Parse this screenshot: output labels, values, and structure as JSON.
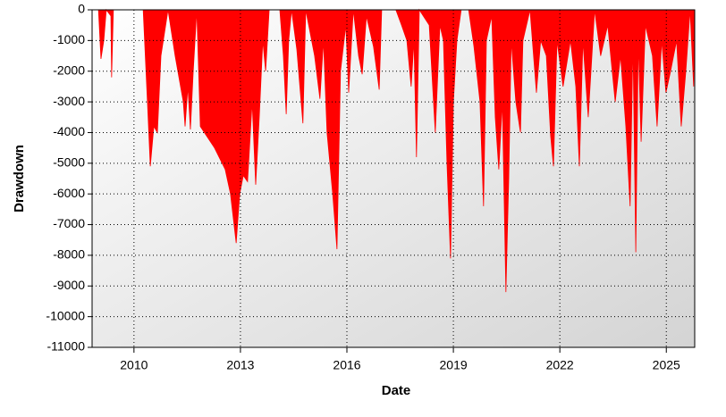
{
  "chart_data": {
    "type": "area",
    "x_label": "Date",
    "y_label": "Drawdown",
    "color": "#ff0000",
    "grid": true,
    "xlim": [
      2008.82,
      2025.8
    ],
    "xticks": [
      2010,
      2013,
      2016,
      2019,
      2022,
      2025
    ],
    "ylim": [
      -11000,
      0
    ],
    "yticks": [
      0,
      -1000,
      -2000,
      -3000,
      -4000,
      -5000,
      -6000,
      -7000,
      -8000,
      -9000,
      -10000,
      -11000
    ],
    "x": [
      2009.0,
      2009.07,
      2009.15,
      2009.22,
      2009.35,
      2009.37,
      2009.42,
      2010.26,
      2010.38,
      2010.46,
      2010.56,
      2010.66,
      2010.76,
      2010.96,
      2011.16,
      2011.39,
      2011.44,
      2011.52,
      2011.59,
      2011.67,
      2011.77,
      2011.87,
      2012.27,
      2012.57,
      2012.72,
      2012.88,
      2012.98,
      2013.08,
      2013.2,
      2013.33,
      2013.43,
      2013.53,
      2013.63,
      2013.71,
      2013.81,
      2014.11,
      2014.21,
      2014.29,
      2014.36,
      2014.44,
      2014.59,
      2014.76,
      2014.84,
      2015.09,
      2015.24,
      2015.34,
      2015.44,
      2015.6,
      2015.72,
      2015.82,
      2015.97,
      2016.05,
      2016.18,
      2016.33,
      2016.43,
      2016.55,
      2016.75,
      2016.91,
      2016.98,
      2017.38,
      2017.54,
      2017.69,
      2017.81,
      2017.89,
      2017.96,
      2018.04,
      2018.32,
      2018.49,
      2018.62,
      2018.72,
      2018.82,
      2018.92,
      2019.0,
      2019.1,
      2019.22,
      2019.43,
      2019.58,
      2019.75,
      2019.85,
      2019.93,
      2020.08,
      2020.18,
      2020.28,
      2020.38,
      2020.48,
      2020.56,
      2020.63,
      2020.76,
      2020.89,
      2020.96,
      2021.16,
      2021.34,
      2021.46,
      2021.62,
      2021.74,
      2021.82,
      2021.92,
      2022.09,
      2022.3,
      2022.45,
      2022.55,
      2022.65,
      2022.8,
      2022.98,
      2023.15,
      2023.35,
      2023.56,
      2023.71,
      2023.86,
      2023.98,
      2024.06,
      2024.14,
      2024.21,
      2024.29,
      2024.41,
      2024.61,
      2024.74,
      2024.87,
      2024.99,
      2025.12,
      2025.29,
      2025.42,
      2025.55,
      2025.67,
      2025.77,
      2025.8
    ],
    "values": [
      0,
      -1600,
      -1000,
      0,
      -200,
      -2200,
      0,
      0,
      -3000,
      -5100,
      -3800,
      -4000,
      -1500,
      0,
      -1500,
      -3000,
      -3800,
      -2500,
      -3900,
      -2000,
      0,
      -3800,
      -4500,
      -5200,
      -6000,
      -7600,
      -6000,
      -5400,
      -5600,
      -3000,
      -5700,
      -3500,
      -1000,
      -2000,
      0,
      0,
      -1500,
      -3400,
      -1000,
      0,
      -1300,
      -3700,
      0,
      -1500,
      -2900,
      -1000,
      -4000,
      -6000,
      -7800,
      -2000,
      -500,
      -2700,
      0,
      -1500,
      -2100,
      -200,
      -1200,
      -2600,
      0,
      0,
      -500,
      -1000,
      -2500,
      -1000,
      -4800,
      0,
      -500,
      -4000,
      -500,
      -1000,
      -5000,
      -8100,
      -3000,
      -1000,
      0,
      0,
      -1200,
      -3000,
      -6400,
      -1000,
      -200,
      -3500,
      -5200,
      -3000,
      -9200,
      -5500,
      -1000,
      -3000,
      -4000,
      -1000,
      0,
      -2700,
      -1000,
      -1500,
      -4100,
      -5100,
      -1000,
      -2500,
      -1000,
      -2500,
      -5100,
      -1000,
      -3500,
      0,
      -1500,
      -500,
      -3000,
      -1500,
      -3800,
      -6400,
      -1000,
      -7900,
      -1000,
      -4300,
      -500,
      -1500,
      -3800,
      -1000,
      -2700,
      -2000,
      -1000,
      -3800,
      -2000,
      0,
      -2500,
      0
    ]
  }
}
